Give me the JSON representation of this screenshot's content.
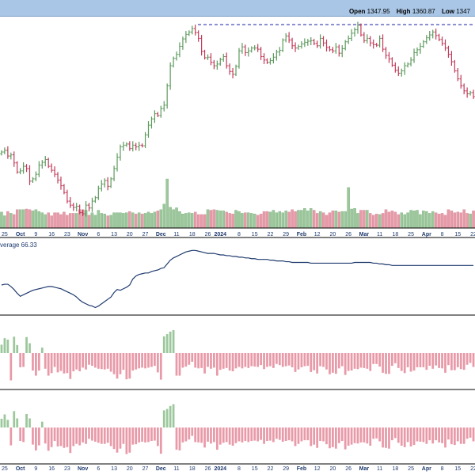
{
  "header": {
    "open_label": "Open",
    "open_value": "1347.95",
    "high_label": "High",
    "high_value": "1360.87",
    "low_label": "Low",
    "low_value": "1347"
  },
  "chart_data": [
    {
      "type": "candlestick",
      "panel": "price",
      "resistance_line": 1391,
      "ylim": [
        1035,
        1405
      ],
      "n_periods": 152,
      "close": [
        1168,
        1171,
        1161,
        1163,
        1149,
        1133,
        1135,
        1143,
        1139,
        1117,
        1121,
        1129,
        1145,
        1150,
        1155,
        1143,
        1136,
        1129,
        1119,
        1109,
        1097,
        1082,
        1075,
        1071,
        1073,
        1062,
        1060,
        1075,
        1070,
        1082,
        1088,
        1104,
        1112,
        1118,
        1108,
        1121,
        1139,
        1159,
        1177,
        1180,
        1182,
        1174,
        1180,
        1177,
        1180,
        1179,
        1198,
        1215,
        1226,
        1235,
        1232,
        1244,
        1250,
        1284,
        1319,
        1332,
        1339,
        1353,
        1366,
        1374,
        1378,
        1384,
        1377,
        1367,
        1344,
        1333,
        1334,
        1325,
        1319,
        1322,
        1330,
        1335,
        1319,
        1309,
        1304,
        1318,
        1345,
        1352,
        1342,
        1345,
        1350,
        1350,
        1348,
        1335,
        1329,
        1325,
        1328,
        1334,
        1343,
        1346,
        1364,
        1371,
        1364,
        1354,
        1350,
        1353,
        1357,
        1360,
        1362,
        1363,
        1358,
        1354,
        1367,
        1359,
        1351,
        1347,
        1345,
        1352,
        1341,
        1349,
        1361,
        1367,
        1376,
        1382,
        1390,
        1373,
        1363,
        1367,
        1359,
        1356,
        1355,
        1367,
        1348,
        1337,
        1331,
        1320,
        1311,
        1306,
        1310,
        1319,
        1322,
        1329,
        1342,
        1347,
        1353,
        1361,
        1368,
        1373,
        1378,
        1372,
        1365,
        1358,
        1350,
        1339,
        1326,
        1310,
        1296,
        1284,
        1275,
        1270,
        1272,
        1265
      ],
      "volume": [
        26,
        20,
        27,
        24,
        22,
        30,
        30,
        30,
        31,
        30,
        28,
        30,
        27,
        25,
        22,
        25,
        20,
        25,
        25,
        22,
        26,
        21,
        24,
        24,
        24,
        30,
        30,
        29,
        21,
        25,
        21,
        29,
        24,
        23,
        20,
        21,
        25,
        25,
        25,
        24,
        25,
        27,
        25,
        23,
        25,
        23,
        24,
        26,
        24,
        26,
        28,
        30,
        39,
        80,
        34,
        30,
        33,
        27,
        23,
        24,
        25,
        24,
        26,
        22,
        22,
        22,
        30,
        29,
        30,
        29,
        28,
        28,
        26,
        24,
        23,
        29,
        27,
        24,
        25,
        25,
        24,
        23,
        21,
        23,
        27,
        27,
        26,
        29,
        25,
        27,
        25,
        28,
        26,
        30,
        27,
        29,
        29,
        32,
        28,
        32,
        29,
        24,
        27,
        25,
        21,
        25,
        28,
        28,
        26,
        27,
        27,
        66,
        31,
        32,
        24,
        29,
        29,
        29,
        24,
        21,
        23,
        22,
        24,
        30,
        26,
        28,
        26,
        22,
        25,
        22,
        25,
        29,
        28,
        29,
        22,
        28,
        27,
        24,
        27,
        25,
        23,
        24,
        21,
        30,
        28,
        25,
        26,
        25,
        30,
        24,
        23,
        28
      ],
      "x_tick_labels": [
        "25",
        "Oct",
        "9",
        "16",
        "23",
        "Nov",
        "6",
        "13",
        "20",
        "27",
        "Dec",
        "11",
        "18",
        "26",
        "2024",
        "8",
        "15",
        "22",
        "29",
        "Feb",
        "12",
        "20",
        "26",
        "Mar",
        "11",
        "18",
        "25",
        "Apr",
        "8",
        "15",
        "22"
      ],
      "x_tick_periods": [
        1,
        6,
        11,
        16,
        21,
        26,
        31,
        36,
        41,
        46,
        51,
        56,
        61,
        66,
        70,
        76,
        81,
        86,
        91,
        96,
        101,
        106,
        111,
        116,
        121,
        126,
        131,
        136,
        141,
        146,
        151
      ]
    },
    {
      "type": "line",
      "panel": "indicator",
      "label": "verage 66.33",
      "ylim": [
        0,
        100
      ],
      "values": [
        40,
        41,
        41,
        38,
        34,
        29,
        25,
        27,
        29,
        31,
        33,
        34,
        35,
        36,
        37,
        38,
        38,
        37,
        36,
        35,
        33,
        31,
        29,
        27,
        24,
        20,
        17,
        15,
        13,
        12,
        10,
        12,
        15,
        18,
        21,
        24,
        30,
        34,
        33,
        35,
        37,
        40,
        48,
        52,
        54,
        55,
        56,
        56,
        58,
        59,
        60,
        62,
        63,
        68,
        73,
        76,
        78,
        80,
        82,
        84,
        85,
        86,
        86,
        85,
        84,
        83,
        82,
        82,
        82,
        81,
        80,
        80,
        79,
        79,
        78,
        78,
        77,
        77,
        76,
        76,
        75,
        75,
        74,
        74,
        74,
        74,
        73,
        73,
        72,
        72,
        72,
        71,
        71,
        70,
        70,
        70,
        70,
        70,
        70,
        69,
        69,
        69,
        69,
        69,
        69,
        69,
        69,
        69,
        69,
        69,
        69,
        69,
        69,
        70,
        70,
        70,
        70,
        70,
        70,
        69,
        69,
        68,
        68,
        67,
        67,
        66,
        66,
        66,
        66,
        66,
        66,
        66,
        66,
        66,
        66,
        66,
        66,
        66,
        66,
        66,
        66,
        66,
        66,
        66,
        66,
        66,
        66,
        66,
        66,
        66,
        66,
        66
      ]
    },
    {
      "type": "bar",
      "panel": "histogram-1",
      "ylim": [
        -80,
        100
      ],
      "values": [
        23,
        41,
        37,
        -75,
        45,
        22,
        -39,
        -38,
        44,
        27,
        -48,
        -62,
        -48,
        15,
        -43,
        -62,
        -55,
        -38,
        -53,
        -49,
        -56,
        -55,
        -71,
        -50,
        -45,
        -50,
        -40,
        -45,
        -32,
        -35,
        -40,
        -43,
        -44,
        -45,
        -43,
        -51,
        -58,
        -70,
        -58,
        -46,
        -72,
        -70,
        -48,
        -45,
        -42,
        -40,
        -42,
        -40,
        -38,
        -35,
        -53,
        -73,
        46,
        52,
        59,
        63,
        -62,
        -62,
        -40,
        -37,
        -32,
        -24,
        -40,
        -42,
        -41,
        -56,
        -38,
        -43,
        -40,
        -62,
        -46,
        -43,
        -41,
        -48,
        -50,
        -42,
        -38,
        -42,
        -38,
        -41,
        -36,
        -37,
        -38,
        -33,
        -44,
        -38,
        -36,
        -41,
        -30,
        -33,
        -38,
        -36,
        -34,
        -39,
        -52,
        -45,
        -39,
        -36,
        -35,
        -52,
        -47,
        -56,
        -36,
        -38,
        -45,
        -58,
        -54,
        -57,
        -42,
        -36,
        -60,
        -49,
        -48,
        -43,
        -44,
        -40,
        -41,
        -43,
        -49,
        -30,
        -30,
        -37,
        -54,
        -57,
        -57,
        -35,
        -28,
        -41,
        -49,
        -55,
        -39,
        -51,
        -48,
        -39,
        -39,
        -39,
        -46,
        -35,
        -43,
        -34,
        -41,
        -42,
        -54,
        -33,
        -47,
        -47,
        -39,
        -44,
        -46,
        -32,
        -27,
        -38
      ]
    },
    {
      "type": "bar",
      "panel": "histogram-2",
      "ylim": [
        -80,
        100
      ],
      "values": [
        24,
        36,
        21,
        -49,
        45,
        25,
        -37,
        -40,
        37,
        25,
        -47,
        -63,
        -49,
        16,
        -44,
        -64,
        -54,
        -37,
        -52,
        -51,
        -56,
        -54,
        -70,
        -51,
        -45,
        -49,
        -41,
        -45,
        -31,
        -36,
        -39,
        -42,
        -45,
        -45,
        -42,
        -51,
        -59,
        -69,
        -58,
        -45,
        -73,
        -69,
        -47,
        -46,
        -41,
        -39,
        -41,
        -40,
        -37,
        -36,
        -51,
        -72,
        47,
        51,
        59,
        64,
        -61,
        -63,
        -41,
        -38,
        -33,
        -23,
        -40,
        -41,
        -42,
        -55,
        -39,
        -44,
        -40,
        -61,
        -47,
        -42,
        -40,
        -47,
        -50,
        -43,
        -38,
        -41,
        -37,
        -40,
        -37,
        -36,
        -38,
        -34,
        -45,
        -37,
        -36,
        -40,
        -31,
        -34,
        -39,
        -37,
        -35,
        -38,
        -51,
        -45,
        -38,
        -35,
        -35,
        -51,
        -47,
        -56,
        -37,
        -38,
        -46,
        -57,
        -54,
        -58,
        -43,
        -37,
        -60,
        -50,
        -47,
        -43,
        -44,
        -41,
        -41,
        -44,
        -50,
        -31,
        -30,
        -38,
        -55,
        -56,
        -58,
        -35,
        -29,
        -42,
        -50,
        -54,
        -40,
        -52,
        -48,
        -38,
        -39,
        -40,
        -45,
        -35,
        -44,
        -35,
        -41,
        -43,
        -55,
        -33,
        -46,
        -48,
        -38,
        -45,
        -45,
        -31,
        -28,
        -38
      ]
    }
  ],
  "colors": {
    "up": "#5c9a5c",
    "down": "#c23b5a",
    "up_volume": "#9cc79c",
    "down_volume": "#e89aa8",
    "indicator_line": "#1f3b6e",
    "resistance": "#1a1aa8",
    "axis_text": "#1f3b6e"
  }
}
